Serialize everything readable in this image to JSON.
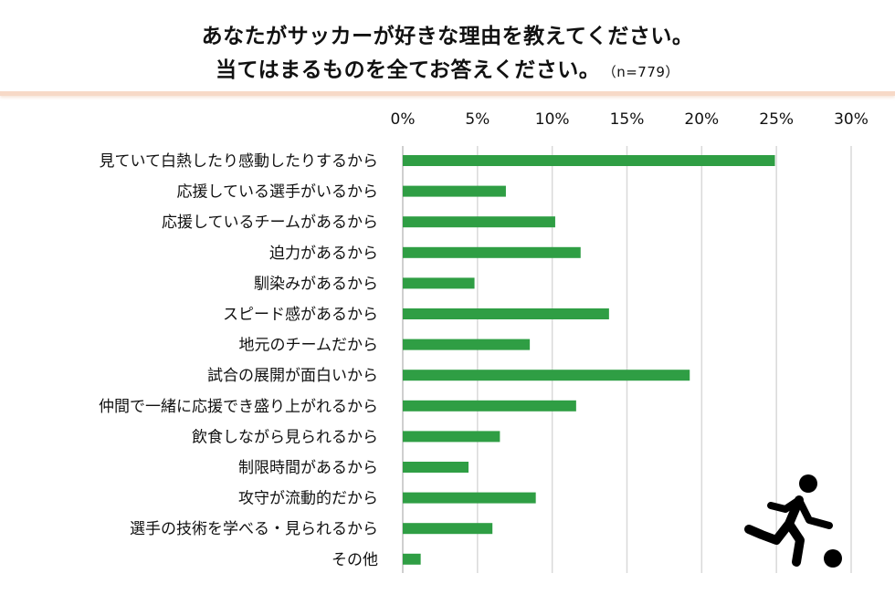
{
  "header": {
    "title_line1": "あなたがサッカーが好きな理由を教えてください。",
    "title_line2": "当てはまるものを全てお答えください。",
    "sample_note": "（n=779）"
  },
  "icons": {
    "player": "soccer-player-icon"
  },
  "colors": {
    "bar": "#2f9e44",
    "grid": "#d9d9d9",
    "axis": "#bfbfbf",
    "header_border": "#f7d9c7"
  },
  "chart_data": {
    "type": "bar",
    "orientation": "horizontal",
    "categories": [
      "見ていて白熱したり感動したりするから",
      "応援している選手がいるから",
      "応援しているチームがあるから",
      "迫力があるから",
      "馴染みがあるから",
      "スピード感があるから",
      "地元のチームだから",
      "試合の展開が面白いから",
      "仲間で一緒に応援でき盛り上がれるから",
      "飲食しながら見られるから",
      "制限時間があるから",
      "攻守が流動的だから",
      "選手の技術を学べる・見られるから",
      "その他"
    ],
    "values": [
      24.9,
      6.9,
      10.2,
      11.9,
      4.8,
      13.8,
      8.5,
      19.2,
      11.6,
      6.5,
      4.4,
      8.9,
      6.0,
      1.2
    ],
    "unit": "%",
    "xlim": [
      0,
      30
    ],
    "ticks": [
      0,
      5,
      10,
      15,
      20,
      25,
      30
    ],
    "tick_labels": [
      "0%",
      "5%",
      "10%",
      "15%",
      "20%",
      "25%",
      "30%"
    ],
    "axis_position": "top",
    "grid": true
  }
}
